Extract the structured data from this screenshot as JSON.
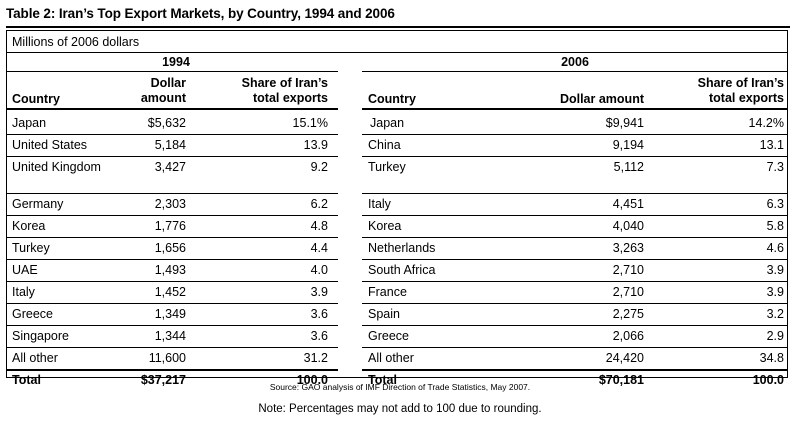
{
  "title": "Table 2: Iran’s Top Export Markets, by Country, 1994 and 2006",
  "units": "Millions of 2006 dollars",
  "panels": {
    "left": {
      "year": "1994",
      "headers": {
        "country": "Country",
        "amount": "Dollar amount",
        "share": "Share of Iran’s total exports"
      },
      "rows": [
        {
          "country": "Japan",
          "amount": "$5,632",
          "share": "15.1%"
        },
        {
          "country": "United States",
          "amount": "5,184",
          "share": "13.9"
        },
        {
          "country": "United Kingdom",
          "amount": "3,427",
          "share": "9.2"
        },
        {
          "country": "Germany",
          "amount": "2,303",
          "share": "6.2"
        },
        {
          "country": "Korea",
          "amount": "1,776",
          "share": "4.8"
        },
        {
          "country": "Turkey",
          "amount": "1,656",
          "share": "4.4"
        },
        {
          "country": "UAE",
          "amount": "1,493",
          "share": "4.0"
        },
        {
          "country": "Italy",
          "amount": "1,452",
          "share": "3.9"
        },
        {
          "country": "Greece",
          "amount": "1,349",
          "share": "3.6"
        },
        {
          "country": "Singapore",
          "amount": "1,344",
          "share": "3.6"
        },
        {
          "country": "All other",
          "amount": "11,600",
          "share": "31.2"
        }
      ],
      "total": {
        "country": "Total",
        "amount": "$37,217",
        "share": "100.0"
      }
    },
    "right": {
      "year": "2006",
      "headers": {
        "country": "Country",
        "amount": "Dollar amount",
        "share": "Share of Iran’s total exports"
      },
      "rows": [
        {
          "country": "Japan",
          "amount": "$9,941",
          "share": "14.2%"
        },
        {
          "country": "China",
          "amount": "9,194",
          "share": "13.1"
        },
        {
          "country": "Turkey",
          "amount": "5,112",
          "share": "7.3"
        },
        {
          "country": "Italy",
          "amount": "4,451",
          "share": "6.3"
        },
        {
          "country": "Korea",
          "amount": "4,040",
          "share": "5.8"
        },
        {
          "country": "Netherlands",
          "amount": "3,263",
          "share": "4.6"
        },
        {
          "country": "South Africa",
          "amount": "2,710",
          "share": "3.9"
        },
        {
          "country": "France",
          "amount": "2,710",
          "share": "3.9"
        },
        {
          "country": "Spain",
          "amount": "2,275",
          "share": "3.2"
        },
        {
          "country": "Greece",
          "amount": "2,066",
          "share": "2.9"
        },
        {
          "country": "All other",
          "amount": "24,420",
          "share": "34.8"
        }
      ],
      "total": {
        "country": "Total",
        "amount": "$70,181",
        "share": "100.0"
      }
    }
  },
  "source": "Source: GAO analysis of IMF Direction of Trade Statistics, May 2007.",
  "note": "Note: Percentages may not add to 100 due to rounding."
}
